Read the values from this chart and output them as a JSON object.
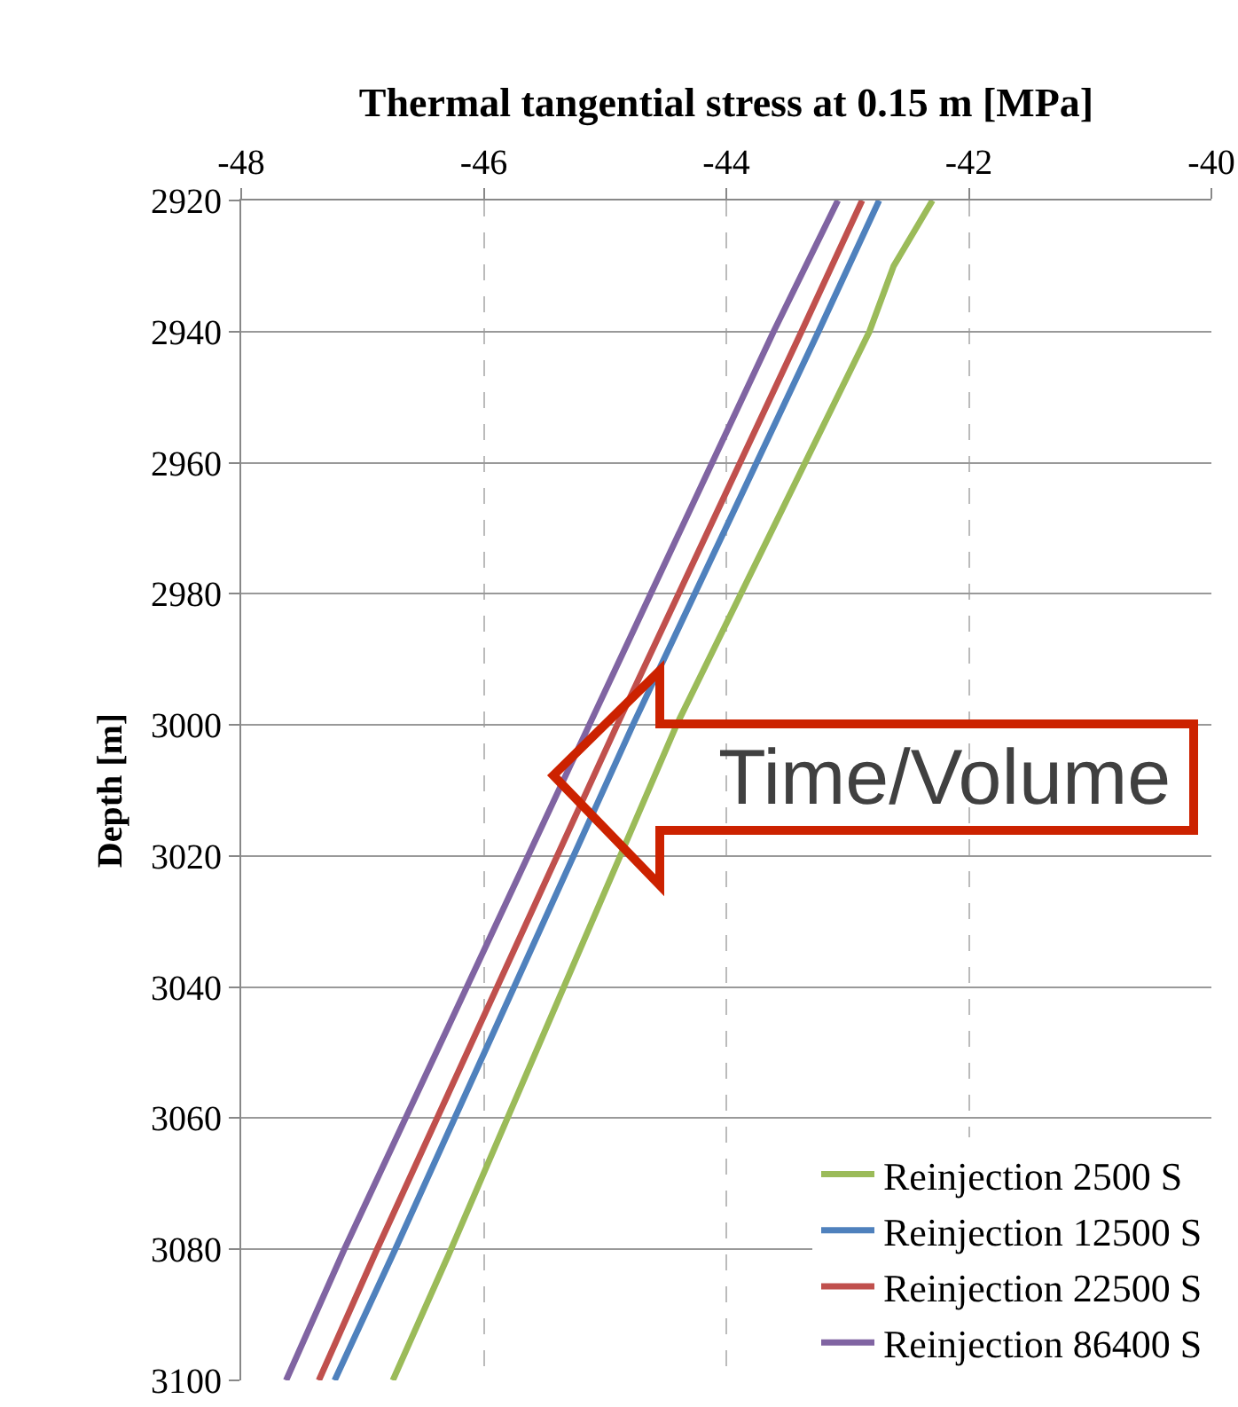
{
  "chart_data": {
    "type": "line",
    "xlabel": "Thermal tangential stress at 0.15 m [MPa]",
    "ylabel": "Depth [m]",
    "xlim": [
      -48,
      -40
    ],
    "xticks": [
      -48,
      -46,
      -44,
      -42,
      -40
    ],
    "ylim": [
      3100,
      2920
    ],
    "yticks": [
      2920,
      2940,
      2960,
      2980,
      3000,
      3020,
      3040,
      3060,
      3080,
      3100
    ],
    "grid": true,
    "legend": "bottom right",
    "marker": "none",
    "line_style": "solid",
    "annotations": [
      "Time/Volume"
    ],
    "series": [
      {
        "name": "Reinjection 2500 S",
        "color": "#9bbb59",
        "x": [
          -42.3,
          -42.62,
          -42.82,
          -44.41,
          -46.27,
          -46.75
        ],
        "values": [
          2920,
          2930,
          2940,
          3000,
          3080,
          3100
        ]
      },
      {
        "name": "Reinjection 12500 S",
        "color": "#4f81bd",
        "x": [
          -42.74,
          -43.24,
          -44.77,
          -46.73,
          -47.23
        ],
        "values": [
          2920,
          2940,
          3000,
          3080,
          3100
        ]
      },
      {
        "name": "Reinjection 22500 S",
        "color": "#c0504d",
        "x": [
          -42.88,
          -43.38,
          -44.9,
          -46.88,
          -47.36
        ],
        "values": [
          2920,
          2940,
          3000,
          3080,
          3100
        ]
      },
      {
        "name": "Reinjection 86400 S",
        "color": "#8064a2",
        "x": [
          -43.08,
          -43.61,
          -45.13,
          -47.15,
          -47.63
        ],
        "values": [
          2920,
          2940,
          3000,
          3080,
          3100
        ]
      }
    ]
  }
}
